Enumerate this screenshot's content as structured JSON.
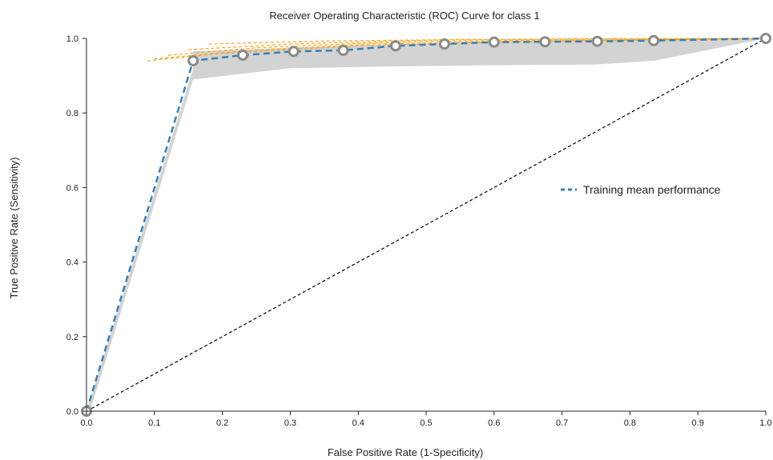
{
  "chart_data": {
    "type": "line",
    "title": "Receiver Operating Characteristic (ROC) Curve for class 1",
    "xlabel": "False Positive Rate (1-Specificity)",
    "ylabel": "True Positive Rate (Sensitivity)",
    "xlim": [
      0.0,
      1.0
    ],
    "ylim": [
      0.0,
      1.0
    ],
    "x_ticks": [
      "0.0",
      "0.1",
      "0.2",
      "0.3",
      "0.4",
      "0.5",
      "0.6",
      "0.7",
      "0.8",
      "0.9",
      "1.0"
    ],
    "y_ticks": [
      "0.0",
      "0.2",
      "0.4",
      "0.6",
      "0.8",
      "1.0"
    ],
    "grid": false,
    "legend_position": "center-right",
    "series": [
      {
        "name": "Training mean performance",
        "style": "dashed",
        "color": "#3a7fb5",
        "x": [
          0.0,
          0.157,
          0.23,
          0.305,
          0.378,
          0.455,
          0.527,
          0.6,
          0.675,
          0.752,
          0.835,
          1.0
        ],
        "y": [
          0.0,
          0.94,
          0.955,
          0.965,
          0.968,
          0.98,
          0.985,
          0.99,
          0.991,
          0.992,
          0.994,
          1.0
        ]
      }
    ],
    "band": {
      "color": "#d3d3d3",
      "x": [
        0.157,
        0.3,
        0.45,
        0.6,
        0.75,
        0.835,
        1.0
      ],
      "upper": [
        0.965,
        0.975,
        0.985,
        0.99,
        0.995,
        0.997,
        1.0
      ],
      "lower": [
        0.89,
        0.92,
        0.925,
        0.928,
        0.93,
        0.94,
        1.0
      ]
    },
    "fold_curves": {
      "color": "#f5a623",
      "style": "dashed",
      "curves": [
        {
          "x": [
            0.09,
            0.2,
            0.4,
            0.6,
            0.8,
            1.0
          ],
          "y": [
            0.94,
            0.96,
            0.98,
            0.99,
            0.995,
            1.0
          ]
        },
        {
          "x": [
            0.12,
            0.25,
            0.45,
            0.65,
            0.85,
            1.0
          ],
          "y": [
            0.955,
            0.975,
            0.99,
            0.995,
            0.997,
            1.0
          ]
        },
        {
          "x": [
            0.15,
            0.3,
            0.5,
            0.7,
            0.9,
            1.0
          ],
          "y": [
            0.97,
            0.985,
            0.995,
            0.998,
            0.999,
            1.0
          ]
        },
        {
          "x": [
            0.18,
            0.35,
            0.55,
            0.75,
            0.95,
            1.0
          ],
          "y": [
            0.985,
            0.993,
            0.997,
            0.999,
            1.0,
            1.0
          ]
        },
        {
          "x": [
            0.1,
            0.22,
            0.42,
            0.62,
            0.82,
            1.0
          ],
          "y": [
            0.945,
            0.965,
            0.985,
            0.992,
            0.996,
            1.0
          ]
        }
      ]
    },
    "reference_line": {
      "style": "dashed",
      "color": "#000000",
      "x": [
        0.0,
        1.0
      ],
      "y": [
        0.0,
        1.0
      ]
    }
  }
}
